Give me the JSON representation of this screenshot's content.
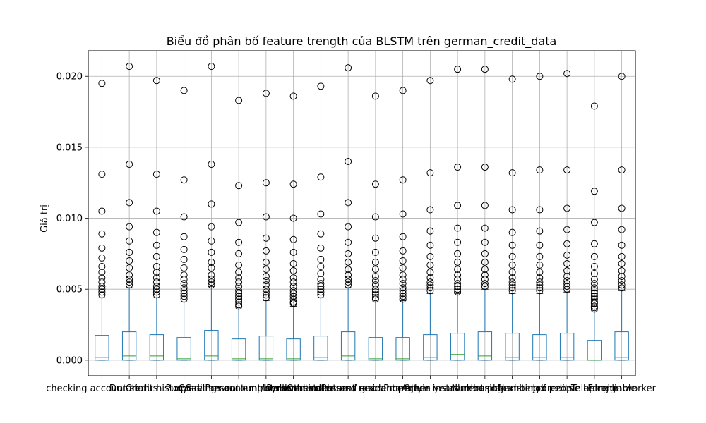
{
  "chart_data": {
    "type": "box",
    "title": "Biểu đồ phân bố feature trength của BLSTM trên german_credit_data",
    "xlabel": "",
    "ylabel": "Giá trị",
    "ylim": [
      -0.0011,
      0.0218
    ],
    "grid": true,
    "yticks": [
      "0.000",
      "0.005",
      "0.010",
      "0.015",
      "0.020"
    ],
    "categories": [
      "checking account status",
      "Duration",
      "Credit history",
      "Purpose",
      "Credit amount",
      "Savings account/bonds",
      "Present employment since",
      "Installment rate",
      "Personal status and sex",
      "Other debtors / guarantors",
      "Present residence since",
      "Property",
      "Age in years",
      "Other installment plans",
      "Housing",
      "Number of existing credits",
      "Job",
      "Number of people being liable",
      "Telephone",
      "Foreign worker"
    ],
    "boxes": [
      {
        "q1": 0.0,
        "median": 0.0002,
        "q3": 0.00175,
        "whisker_low": 0.0,
        "whisker_high": 0.0044,
        "outliers": [
          0.0195,
          0.0131,
          0.0105,
          0.0089,
          0.0079,
          0.0072,
          0.0066,
          0.0062,
          0.0058,
          0.0055,
          0.0052,
          0.005,
          0.0048,
          0.0046
        ]
      },
      {
        "q1": 0.0,
        "median": 0.0003,
        "q3": 0.002,
        "whisker_low": 0.0,
        "whisker_high": 0.0051,
        "outliers": [
          0.0207,
          0.0138,
          0.0111,
          0.0094,
          0.0084,
          0.0076,
          0.007,
          0.0065,
          0.006,
          0.0057,
          0.0055,
          0.0053
        ]
      },
      {
        "q1": 0.0,
        "median": 0.0003,
        "q3": 0.0018,
        "whisker_low": 0.0,
        "whisker_high": 0.0044,
        "outliers": [
          0.0197,
          0.0131,
          0.0105,
          0.009,
          0.0081,
          0.0073,
          0.0066,
          0.0062,
          0.0058,
          0.0055,
          0.0052,
          0.005,
          0.0048,
          0.0046
        ]
      },
      {
        "q1": 0.0,
        "median": 0.0001,
        "q3": 0.0016,
        "whisker_low": 0.0,
        "whisker_high": 0.0041,
        "outliers": [
          0.019,
          0.0127,
          0.0101,
          0.0087,
          0.0078,
          0.0071,
          0.0065,
          0.006,
          0.0057,
          0.0054,
          0.0051,
          0.0049,
          0.0047,
          0.0045,
          0.0043
        ]
      },
      {
        "q1": 0.0,
        "median": 0.0003,
        "q3": 0.0021,
        "whisker_low": 0.0,
        "whisker_high": 0.0052,
        "outliers": [
          0.0207,
          0.0138,
          0.011,
          0.0094,
          0.0084,
          0.0076,
          0.0069,
          0.0065,
          0.006,
          0.0057,
          0.0055,
          0.0053
        ]
      },
      {
        "q1": 0.0,
        "median": 0.0001,
        "q3": 0.0015,
        "whisker_low": 0.0,
        "whisker_high": 0.0036,
        "outliers": [
          0.0183,
          0.0123,
          0.0097,
          0.0083,
          0.0075,
          0.0067,
          0.0062,
          0.0058,
          0.0055,
          0.0052,
          0.0049,
          0.0047,
          0.0045,
          0.0043,
          0.0041,
          0.0039,
          0.0038
        ]
      },
      {
        "q1": 0.0,
        "median": 0.0001,
        "q3": 0.0017,
        "whisker_low": 0.0,
        "whisker_high": 0.0042,
        "outliers": [
          0.0188,
          0.0125,
          0.0101,
          0.0086,
          0.0077,
          0.0069,
          0.0064,
          0.0059,
          0.0056,
          0.0053,
          0.005,
          0.0048,
          0.0046,
          0.0044
        ]
      },
      {
        "q1": 0.0,
        "median": 0.0001,
        "q3": 0.0015,
        "whisker_low": 0.0,
        "whisker_high": 0.0038,
        "outliers": [
          0.0186,
          0.0124,
          0.01,
          0.0085,
          0.0076,
          0.0068,
          0.0063,
          0.0058,
          0.0055,
          0.0052,
          0.0049,
          0.0047,
          0.0045,
          0.0043,
          0.0041,
          0.004
        ]
      },
      {
        "q1": 0.0,
        "median": 0.0002,
        "q3": 0.0017,
        "whisker_low": 0.0,
        "whisker_high": 0.0044,
        "outliers": [
          0.0193,
          0.0129,
          0.0103,
          0.0089,
          0.0079,
          0.0071,
          0.0066,
          0.0061,
          0.0057,
          0.0054,
          0.0052,
          0.005,
          0.0048,
          0.0046
        ]
      },
      {
        "q1": 0.0,
        "median": 0.0003,
        "q3": 0.002,
        "whisker_low": 0.0,
        "whisker_high": 0.0051,
        "outliers": [
          0.0206,
          0.014,
          0.0111,
          0.0094,
          0.0083,
          0.0075,
          0.0069,
          0.0064,
          0.006,
          0.0057,
          0.0055,
          0.0053
        ]
      },
      {
        "q1": 0.0,
        "median": 0.0001,
        "q3": 0.0016,
        "whisker_low": 0.0,
        "whisker_high": 0.0041,
        "outliers": [
          0.0186,
          0.0124,
          0.0101,
          0.0086,
          0.0076,
          0.0069,
          0.0064,
          0.0059,
          0.0056,
          0.0053,
          0.005,
          0.0048,
          0.0046,
          0.0044,
          0.0043
        ]
      },
      {
        "q1": 0.0,
        "median": 0.0001,
        "q3": 0.0016,
        "whisker_low": 0.0,
        "whisker_high": 0.0042,
        "outliers": [
          0.019,
          0.0127,
          0.0103,
          0.0087,
          0.0077,
          0.007,
          0.0065,
          0.006,
          0.0057,
          0.0054,
          0.0051,
          0.0049,
          0.0047,
          0.0045,
          0.0043
        ]
      },
      {
        "q1": 0.0,
        "median": 0.0002,
        "q3": 0.0018,
        "whisker_low": 0.0,
        "whisker_high": 0.0047,
        "outliers": [
          0.0197,
          0.0132,
          0.0106,
          0.0091,
          0.0081,
          0.0073,
          0.0067,
          0.0062,
          0.0058,
          0.0055,
          0.0053,
          0.0051,
          0.0049
        ]
      },
      {
        "q1": 0.0,
        "median": 0.0004,
        "q3": 0.0019,
        "whisker_low": 0.0,
        "whisker_high": 0.0047,
        "outliers": [
          0.0205,
          0.0136,
          0.0109,
          0.0093,
          0.0083,
          0.0075,
          0.0069,
          0.0064,
          0.006,
          0.0057,
          0.0054,
          0.0052,
          0.005,
          0.0048
        ]
      },
      {
        "q1": 0.0,
        "median": 0.0003,
        "q3": 0.002,
        "whisker_low": 0.0,
        "whisker_high": 0.005,
        "outliers": [
          0.0205,
          0.0136,
          0.0109,
          0.0093,
          0.0083,
          0.0075,
          0.0069,
          0.0064,
          0.006,
          0.0057,
          0.0054,
          0.0052
        ]
      },
      {
        "q1": 0.0,
        "median": 0.0002,
        "q3": 0.0019,
        "whisker_low": 0.0,
        "whisker_high": 0.0047,
        "outliers": [
          0.0198,
          0.0132,
          0.0106,
          0.009,
          0.0081,
          0.0073,
          0.0067,
          0.0062,
          0.0058,
          0.0055,
          0.0053,
          0.0051,
          0.0049
        ]
      },
      {
        "q1": 0.0,
        "median": 0.0002,
        "q3": 0.0018,
        "whisker_low": 0.0,
        "whisker_high": 0.0047,
        "outliers": [
          0.02,
          0.0134,
          0.0106,
          0.0091,
          0.0081,
          0.0073,
          0.0067,
          0.0062,
          0.0058,
          0.0055,
          0.0053,
          0.0051,
          0.0049
        ]
      },
      {
        "q1": 0.0,
        "median": 0.0002,
        "q3": 0.0019,
        "whisker_low": 0.0,
        "whisker_high": 0.0048,
        "outliers": [
          0.0202,
          0.0134,
          0.0107,
          0.0092,
          0.0082,
          0.0074,
          0.0068,
          0.0063,
          0.0059,
          0.0056,
          0.0054,
          0.0052,
          0.005
        ]
      },
      {
        "q1": 0.0,
        "median": 0.0,
        "q3": 0.0014,
        "whisker_low": 0.0,
        "whisker_high": 0.0034,
        "outliers": [
          0.0179,
          0.0119,
          0.0097,
          0.0082,
          0.0073,
          0.0066,
          0.0061,
          0.0057,
          0.0054,
          0.0051,
          0.0049,
          0.0047,
          0.0045,
          0.0043,
          0.0041,
          0.004,
          0.0038,
          0.0037,
          0.0036
        ]
      },
      {
        "q1": 0.0,
        "median": 0.0002,
        "q3": 0.002,
        "whisker_low": 0.0,
        "whisker_high": 0.0049,
        "outliers": [
          0.02,
          0.0134,
          0.0107,
          0.0092,
          0.0081,
          0.0073,
          0.0068,
          0.0063,
          0.0059,
          0.0056,
          0.0053,
          0.0051
        ]
      }
    ],
    "colors": {
      "box": "#1f77b4",
      "median": "#2ca02c",
      "grid": "#b0b0b0",
      "axes": "#000000"
    }
  }
}
